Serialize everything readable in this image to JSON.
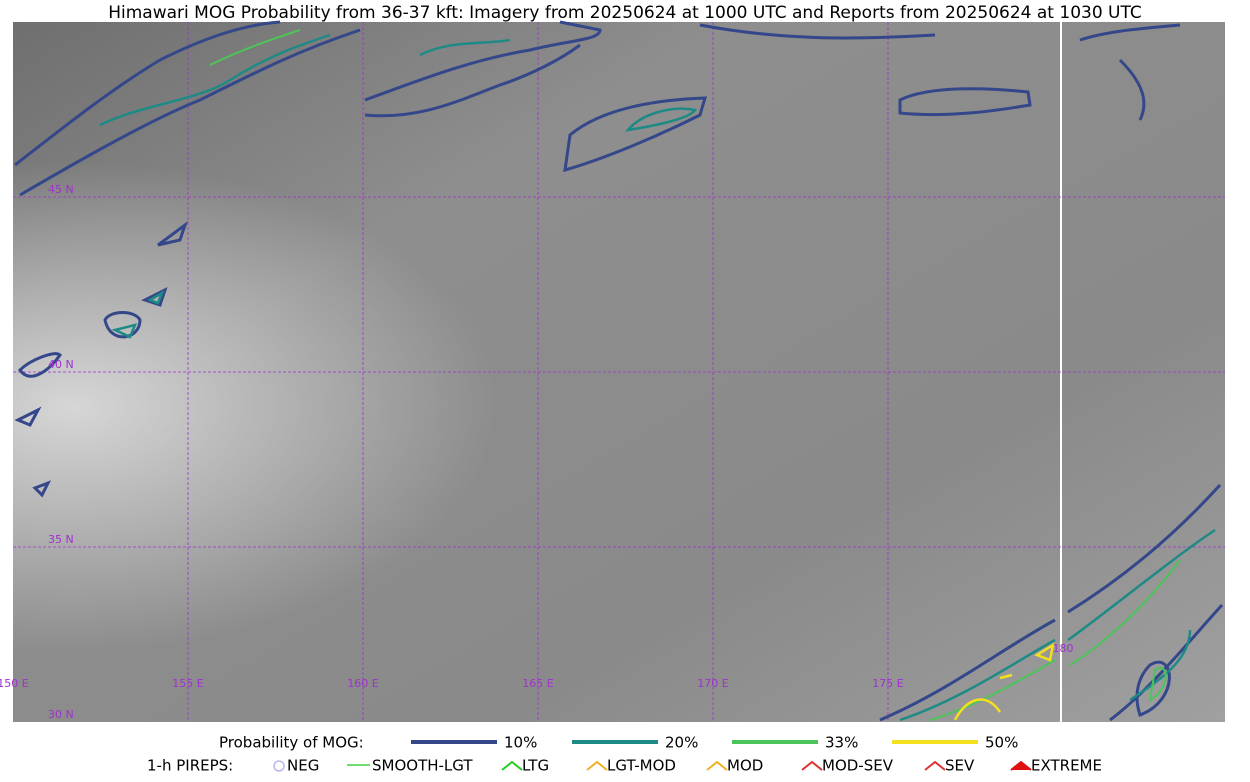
{
  "title": "Himawari MOG Probability from 36-37 kft: Imagery from 20250624 at 1000 UTC and Reports from 20250624 at 1030 UTC",
  "map": {
    "lat_labels": [
      "45 N",
      "40 N",
      "35 N",
      "30 N"
    ],
    "lon_labels": [
      "150 E",
      "155 E",
      "160 E",
      "165 E",
      "170 E",
      "175 E",
      "180"
    ]
  },
  "legend": {
    "probability": {
      "label": "Probability of MOG:",
      "items": [
        {
          "label": "10%",
          "color": "#34478a"
        },
        {
          "label": "20%",
          "color": "#1e8a86"
        },
        {
          "label": "33%",
          "color": "#4cc45a"
        },
        {
          "label": "50%",
          "color": "#f4e01c"
        }
      ]
    },
    "pireps": {
      "label": "1-h PIREPS:",
      "items": [
        {
          "label": "NEG",
          "color": "#b8b8f0"
        },
        {
          "label": "SMOOTH-LGT",
          "color": "#40d040"
        },
        {
          "label": "LTG",
          "color": "#20d020"
        },
        {
          "label": "LGT-MOD",
          "color": "#f0b020"
        },
        {
          "label": "MOD",
          "color": "#f0b020"
        },
        {
          "label": "MOD-SEV",
          "color": "#e03030"
        },
        {
          "label": "SEV",
          "color": "#e03030"
        },
        {
          "label": "EXTREME",
          "color": "#e01010"
        }
      ]
    }
  }
}
